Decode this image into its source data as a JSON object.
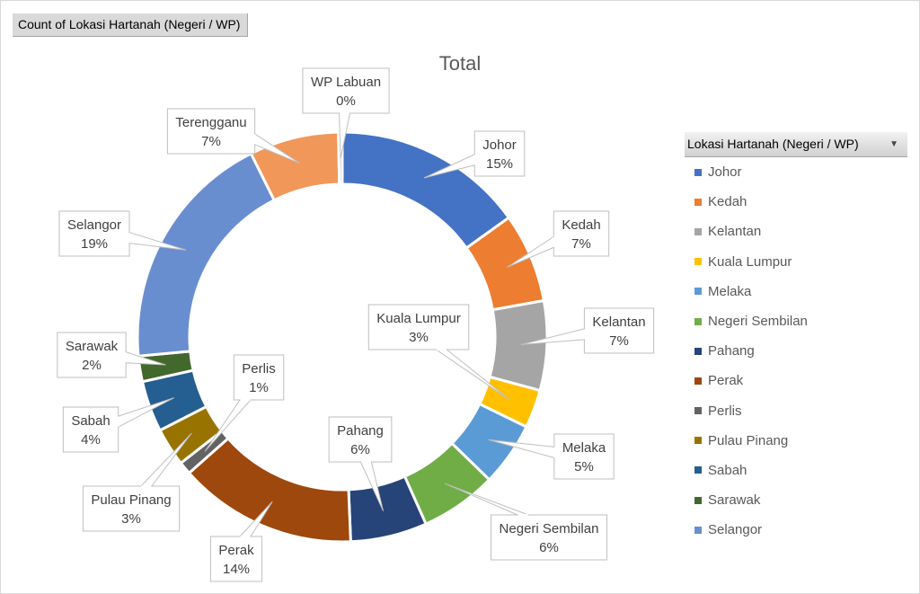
{
  "field_button": {
    "label": "Count of Lokasi Hartanah (Negeri / WP)"
  },
  "legend_header": {
    "label": "Lokasi Hartanah (Negeri / WP)",
    "dropdown_icon": "dropdown-arrow-icon"
  },
  "chart_data": {
    "type": "pie",
    "variant": "doughnut",
    "title": "Total",
    "legend_position": "right",
    "slices": [
      {
        "label": "Johor",
        "value": 15,
        "percent_label": "15%",
        "color": "#4472c4"
      },
      {
        "label": "Kedah",
        "value": 7,
        "percent_label": "7%",
        "color": "#ed7d31"
      },
      {
        "label": "Kelantan",
        "value": 7,
        "percent_label": "7%",
        "color": "#a5a5a5"
      },
      {
        "label": "Kuala Lumpur",
        "value": 3,
        "percent_label": "3%",
        "color": "#ffc000"
      },
      {
        "label": "Melaka",
        "value": 5,
        "percent_label": "5%",
        "color": "#5b9bd5"
      },
      {
        "label": "Negeri Sembilan",
        "value": 6,
        "percent_label": "6%",
        "color": "#70ad47"
      },
      {
        "label": "Pahang",
        "value": 6,
        "percent_label": "6%",
        "color": "#264478"
      },
      {
        "label": "Perak",
        "value": 14,
        "percent_label": "14%",
        "color": "#9e480e"
      },
      {
        "label": "Perlis",
        "value": 1,
        "percent_label": "1%",
        "color": "#636363"
      },
      {
        "label": "Pulau Pinang",
        "value": 3,
        "percent_label": "3%",
        "color": "#997300"
      },
      {
        "label": "Sabah",
        "value": 4,
        "percent_label": "4%",
        "color": "#255e91"
      },
      {
        "label": "Sarawak",
        "value": 2,
        "percent_label": "2%",
        "color": "#43682b"
      },
      {
        "label": "Selangor",
        "value": 19,
        "percent_label": "19%",
        "color": "#698ed0"
      },
      {
        "label": "Terengganu",
        "value": 7,
        "percent_label": "7%",
        "color": "#f1975a"
      },
      {
        "label": "WP Labuan",
        "value": 0.3,
        "percent_label": "0%",
        "color": "#b7b7b7"
      }
    ],
    "legend_entries": [
      "Johor",
      "Kedah",
      "Kelantan",
      "Kuala Lumpur",
      "Melaka",
      "Negeri Sembilan",
      "Pahang",
      "Perak",
      "Perlis",
      "Pulau Pinang",
      "Sabah",
      "Sarawak",
      "Selangor"
    ]
  }
}
